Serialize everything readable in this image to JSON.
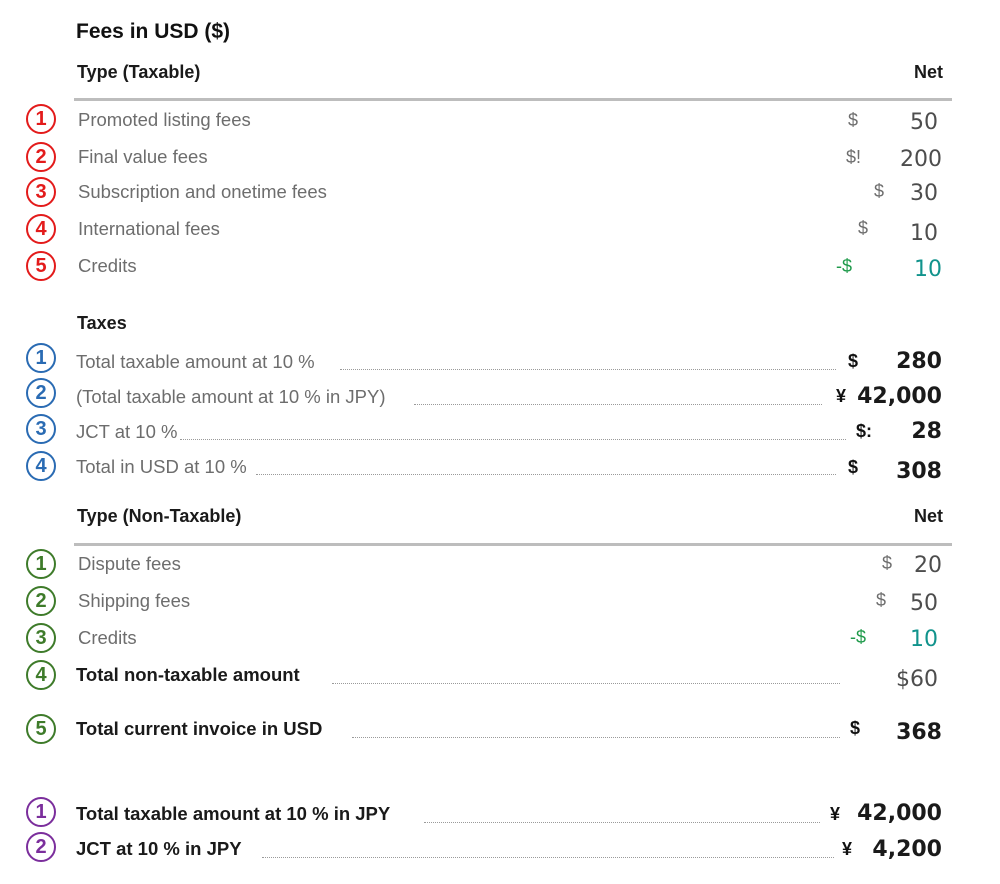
{
  "title": "Fees in USD ($)",
  "taxable": {
    "type_header": "Type (Taxable)",
    "net_header": "Net",
    "rows": [
      {
        "num": "1",
        "label": "Promoted listing fees",
        "currency": "$",
        "amount": "50"
      },
      {
        "num": "2",
        "label": "Final value fees",
        "currency": "$!",
        "amount": "200"
      },
      {
        "num": "3",
        "label": "Subscription and onetime fees",
        "currency": "$",
        "amount": "30"
      },
      {
        "num": "4",
        "label": "International fees",
        "currency": "$",
        "amount": "10"
      },
      {
        "num": "5",
        "label": "Credits",
        "currency": "-$",
        "amount": "10"
      }
    ]
  },
  "taxes": {
    "header": "Taxes",
    "rows": [
      {
        "num": "1",
        "label": "Total taxable amount at 10 %",
        "currency": "$",
        "amount": "280"
      },
      {
        "num": "2",
        "label": "(Total taxable amount at 10 % in JPY)",
        "currency": "¥",
        "amount": "42,000"
      },
      {
        "num": "3",
        "label": "JCT at 10 %",
        "currency": "$:",
        "amount": "28"
      },
      {
        "num": "4",
        "label": "Total in USD at 10 %",
        "currency": "$",
        "amount": "308"
      }
    ]
  },
  "non_taxable": {
    "type_header": "Type (Non-Taxable)",
    "net_header": "Net",
    "rows": [
      {
        "num": "1",
        "label": "Dispute fees",
        "currency": "$",
        "amount": "20"
      },
      {
        "num": "2",
        "label": "Shipping fees",
        "currency": "$",
        "amount": "50"
      },
      {
        "num": "3",
        "label": "Credits",
        "currency": "-$",
        "amount": "10"
      },
      {
        "num": "4",
        "label": "Total non-taxable amount",
        "currency": "",
        "amount": "$60"
      },
      {
        "num": "5",
        "label": "Total current invoice in USD",
        "currency": "$",
        "amount": "368"
      }
    ]
  },
  "jpy": {
    "rows": [
      {
        "num": "1",
        "label": "Total taxable amount at 10 % in JPY",
        "currency": "¥",
        "amount": "42,000"
      },
      {
        "num": "2",
        "label": "JCT at 10 % in JPY",
        "currency": "¥",
        "amount": "4,200"
      }
    ]
  },
  "colors": {
    "red": "#e31b1b",
    "blue": "#2a6bb3",
    "green": "#3e7b2a",
    "purple": "#7b2e9c",
    "credit_currency": "#1e9a4a",
    "credit_amount": "#11938c"
  }
}
